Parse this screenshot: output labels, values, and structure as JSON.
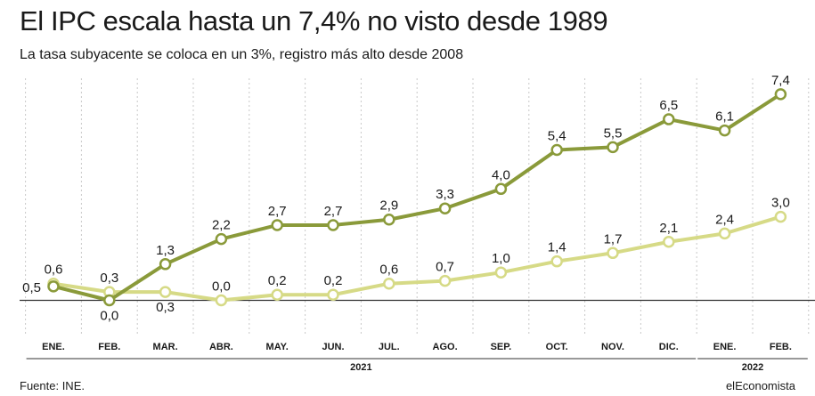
{
  "title": "El IPC escala hasta un 7,4% no visto desde 1989",
  "subtitle": "La tasa subyacente se coloca en un 3%, registro más alto desde 2008",
  "source": "Fuente: INE.",
  "brand": "elEconomista",
  "colors": {
    "general": "#8a9a3a",
    "core": "#d6da86",
    "axis": "#333333",
    "grid": "#c8c8c8"
  },
  "chart_data": {
    "type": "line",
    "categories": [
      "ENE.",
      "FEB.",
      "MAR.",
      "ABR.",
      "MAY.",
      "JUN.",
      "JUL.",
      "AGO.",
      "SEP.",
      "OCT.",
      "NOV.",
      "DIC.",
      "ENE.",
      "FEB."
    ],
    "year_groups": [
      {
        "label": "2021",
        "start": 0,
        "end": 11
      },
      {
        "label": "2022",
        "start": 12,
        "end": 13
      }
    ],
    "series": [
      {
        "values": [
          0.5,
          0.0,
          1.3,
          2.2,
          2.7,
          2.7,
          2.9,
          3.3,
          4.0,
          5.4,
          5.5,
          6.5,
          6.1,
          7.4
        ],
        "labels": [
          "0,5",
          "0,0",
          "1,3",
          "2,2",
          "2,7",
          "2,7",
          "2,9",
          "3,3",
          "4,0",
          "5,4",
          "5,5",
          "6,5",
          "6,1",
          "7,4"
        ]
      },
      {
        "values": [
          0.6,
          0.3,
          0.3,
          0.0,
          0.2,
          0.2,
          0.6,
          0.7,
          1.0,
          1.4,
          1.7,
          2.1,
          2.4,
          3.0
        ],
        "labels": [
          "0,6",
          "0,3",
          "0,3",
          "0,0",
          "0,2",
          "0,2",
          "0,6",
          "0,7",
          "1,0",
          "1,4",
          "1,7",
          "2,1",
          "2,4",
          "3,0"
        ]
      }
    ],
    "ylim": [
      -1.2,
      7.8
    ],
    "grid": "vertical-dotted",
    "legend": "none"
  }
}
